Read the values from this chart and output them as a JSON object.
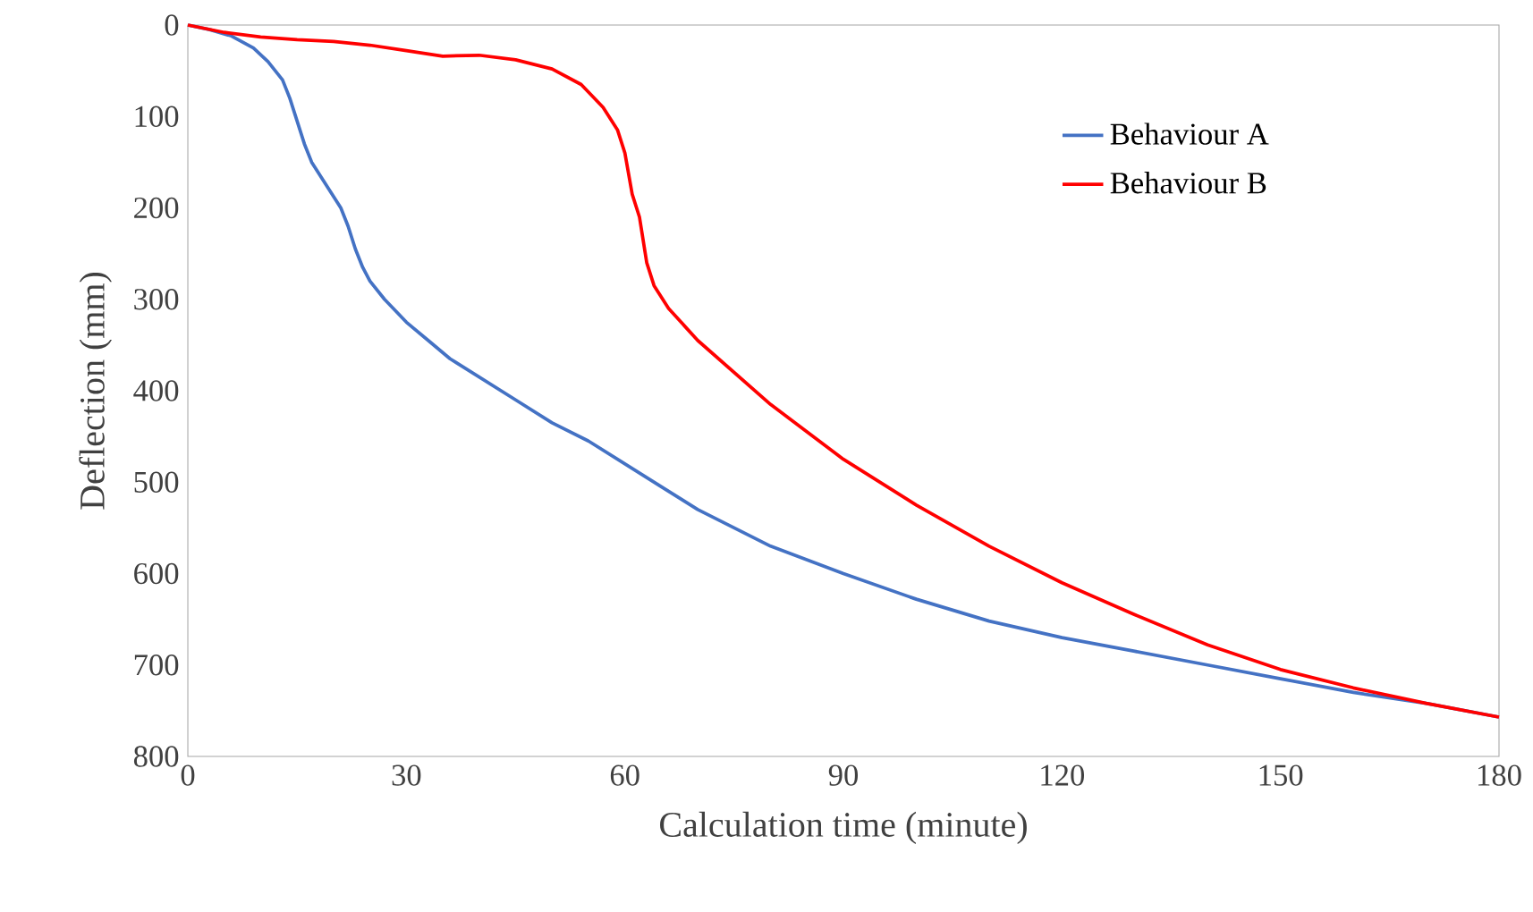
{
  "chart_data": {
    "type": "line",
    "xlabel": "Calculation time (minute)",
    "ylabel": "Deflection (mm)",
    "xlim": [
      0,
      180
    ],
    "xticks": [
      0,
      30,
      60,
      90,
      120,
      150,
      180
    ],
    "ylim": [
      800,
      0
    ],
    "yticks": [
      0,
      100,
      200,
      300,
      400,
      500,
      600,
      700,
      800
    ],
    "grid": false,
    "legend": "top right",
    "marker": "none",
    "line_style": "solid",
    "series": [
      {
        "name": "Behaviour A",
        "color": "#4472c4",
        "x": [
          0,
          3,
          6,
          9,
          11,
          13,
          14,
          15,
          16,
          17,
          19,
          21,
          22,
          23,
          24,
          25,
          27,
          30,
          33,
          36,
          40,
          45,
          50,
          55,
          60,
          65,
          70,
          75,
          80,
          90,
          100,
          110,
          120,
          130,
          140,
          150,
          160,
          170,
          180
        ],
        "values": [
          0,
          5,
          12,
          25,
          40,
          60,
          80,
          105,
          130,
          150,
          175,
          200,
          220,
          245,
          265,
          280,
          300,
          325,
          345,
          365,
          385,
          410,
          435,
          455,
          480,
          505,
          530,
          550,
          570,
          600,
          628,
          652,
          670,
          685,
          700,
          715,
          730,
          742,
          757
        ]
      },
      {
        "name": "Behaviour B",
        "color": "#ff0000",
        "x": [
          0,
          5,
          10,
          15,
          20,
          25,
          30,
          35,
          40,
          45,
          50,
          54,
          57,
          59,
          60,
          61,
          62,
          63,
          64,
          66,
          70,
          75,
          80,
          85,
          90,
          100,
          110,
          120,
          130,
          140,
          150,
          160,
          170,
          180
        ],
        "values": [
          0,
          8,
          13,
          16,
          18,
          22,
          28,
          34,
          33,
          38,
          48,
          65,
          90,
          115,
          140,
          185,
          210,
          260,
          285,
          310,
          345,
          380,
          415,
          445,
          475,
          525,
          570,
          610,
          645,
          678,
          705,
          725,
          742,
          757
        ]
      }
    ]
  }
}
